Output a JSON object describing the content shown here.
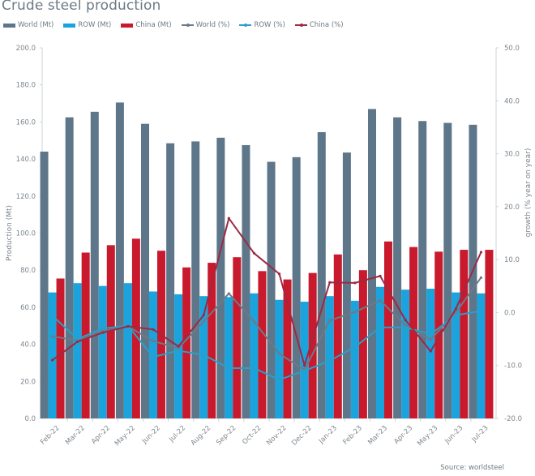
{
  "chart_data": {
    "type": "bar",
    "title": "Crude steel production",
    "source": "Source: worldsteel",
    "categories": [
      "Feb-22",
      "Mar-22",
      "Apr-22",
      "May-22",
      "Jun-22",
      "Jul-22",
      "Aug-22",
      "Sep-22",
      "Oct-22",
      "Nov-22",
      "Dec-22",
      "Jan-23",
      "Feb-23",
      "Mar-23",
      "Apr-23",
      "May-23",
      "Jun-23",
      "Jul-23"
    ],
    "ylabel": "Production (Mt)",
    "y2label": "growth (% year on year)",
    "ylim": [
      0,
      200
    ],
    "y2lim": [
      -20,
      50
    ],
    "yticks": [
      "0.0",
      "20.0",
      "40.0",
      "60.0",
      "80.0",
      "100.0",
      "120.0",
      "140.0",
      "160.0",
      "180.0",
      "200.0"
    ],
    "y2ticks": [
      "-20.0",
      "-10.0",
      "0.0",
      "10.0",
      "20.0",
      "30.0",
      "40.0",
      "50.0"
    ],
    "grid": false,
    "legend_position": "top-left",
    "bar_series": [
      {
        "name": "World (Mt)",
        "color": "#5e7689",
        "values": [
          144.0,
          162.5,
          165.5,
          170.5,
          159.0,
          148.5,
          149.5,
          151.5,
          147.5,
          138.5,
          141.0,
          154.5,
          143.5,
          167.0,
          162.5,
          160.5,
          159.5,
          158.5
        ]
      },
      {
        "name": "ROW (Mt)",
        "color": "#1aa3dc",
        "values": [
          68.0,
          73.0,
          71.5,
          73.0,
          68.5,
          67.0,
          66.0,
          65.5,
          67.5,
          64.0,
          63.0,
          66.0,
          63.5,
          71.0,
          69.5,
          70.0,
          68.0,
          67.5
        ]
      },
      {
        "name": "China (Mt)",
        "color": "#c8192d",
        "values": [
          75.5,
          89.5,
          93.5,
          97.0,
          90.5,
          81.5,
          84.0,
          87.0,
          79.5,
          75.0,
          78.5,
          88.5,
          80.0,
          95.5,
          92.5,
          90.0,
          91.0,
          91.0
        ]
      }
    ],
    "line_series": [
      {
        "name": "World (%)",
        "color": "#6e7a86",
        "axis": "right",
        "values": [
          -4.5,
          -5.3,
          -3.5,
          -2.6,
          -5.4,
          -6.7,
          -1.7,
          3.6,
          -1.7,
          -7.8,
          -10.8,
          -1.5,
          0.1,
          2.3,
          -2.4,
          -5.1,
          0.0,
          6.6
        ]
      },
      {
        "name": "ROW (%)",
        "color": "#2aa0c8",
        "axis": "right",
        "values": [
          -0.6,
          -5.0,
          -3.0,
          -2.5,
          -8.4,
          -7.2,
          -8.0,
          -10.5,
          -10.5,
          -12.7,
          -11.0,
          -9.1,
          -6.5,
          -2.8,
          -2.8,
          -4.1,
          -0.5,
          0.3
        ]
      },
      {
        "name": "China (%)",
        "color": "#9b2a45",
        "axis": "right",
        "values": [
          -9.0,
          -5.5,
          -3.8,
          -2.6,
          -3.2,
          -6.4,
          -0.5,
          17.8,
          11.2,
          7.3,
          -10.0,
          5.7,
          5.6,
          6.9,
          -1.4,
          -7.3,
          0.7,
          11.4
        ]
      }
    ]
  }
}
